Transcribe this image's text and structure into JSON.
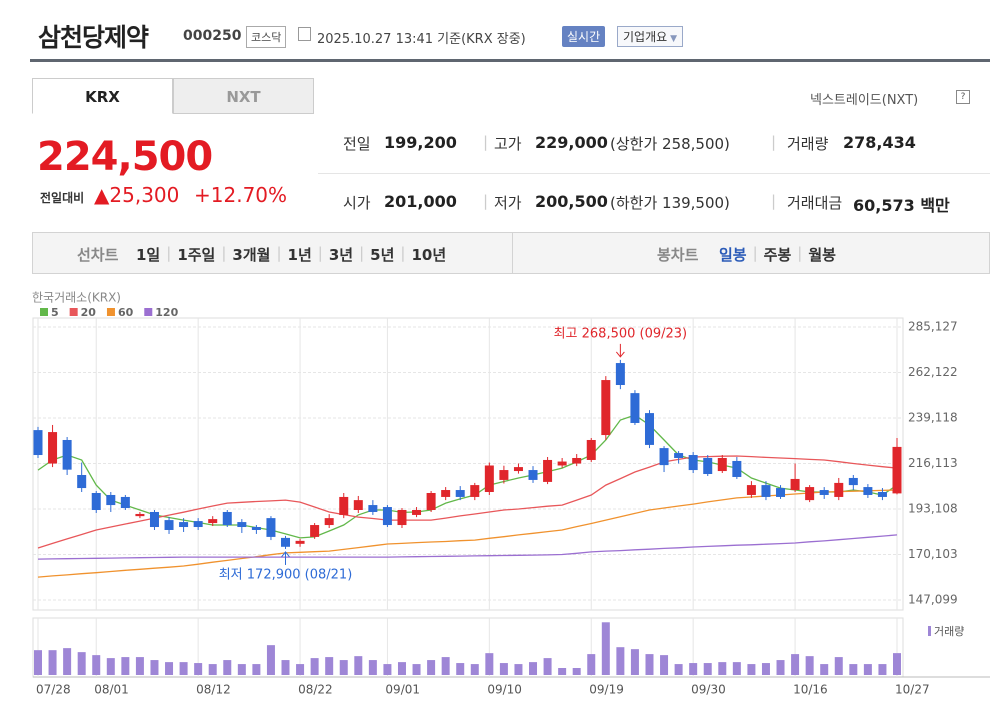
{
  "header": {
    "name": "삼천당제약",
    "code": "000250",
    "market": "코스닥",
    "timestamp": "2025.10.27 13:41 기준(KRX 장중)",
    "realtime": "실시간",
    "company_info": "기업개요"
  },
  "tabs": [
    "KRX",
    "NXT"
  ],
  "nxt_link": "넥스트레이드(NXT)",
  "price": {
    "current": "224,500",
    "change_label": "전일대비",
    "change": "▲25,300",
    "change_rate": "+12.70%"
  },
  "stats": [
    [
      {
        "label": "전일",
        "value": "199,200"
      },
      {
        "label": "고가",
        "value": "229,000",
        "note": "(상한가 258,500)"
      },
      {
        "label": "거래량",
        "value": "278,434"
      }
    ],
    [
      {
        "label": "시가",
        "value": "201,000"
      },
      {
        "label": "저가",
        "value": "200,500",
        "note": "(하한가 139,500)"
      },
      {
        "label": "거래대금",
        "value": "60,573 백만"
      }
    ]
  ],
  "periods": {
    "line_label": "선차트",
    "line": [
      "1일",
      "1주일",
      "3개월",
      "1년",
      "3년",
      "5년",
      "10년"
    ],
    "candle_label": "봉차트",
    "candle": [
      "일봉",
      "주봉",
      "월봉"
    ]
  },
  "chart_data": {
    "type": "candlestick",
    "source": "한국거래소(KRX)",
    "categories": [
      "07/28",
      null,
      null,
      null,
      "08/01",
      null,
      null,
      null,
      null,
      null,
      null,
      "08/12",
      null,
      null,
      null,
      null,
      null,
      null,
      "08/22",
      null,
      null,
      null,
      null,
      null,
      "09/01",
      null,
      null,
      null,
      null,
      null,
      null,
      "09/10",
      null,
      null,
      null,
      null,
      null,
      null,
      "09/19",
      null,
      null,
      null,
      null,
      null,
      null,
      "09/30",
      null,
      null,
      null,
      null,
      null,
      null,
      "10/16",
      null,
      null,
      null,
      null,
      null,
      null,
      "10/27"
    ],
    "open": [
      233000,
      216100,
      228000,
      210300,
      201200,
      200200,
      199200,
      189500,
      191600,
      187500,
      186500,
      187000,
      186000,
      191600,
      186500,
      184000,
      188500,
      178500,
      175500,
      179000,
      185000,
      190100,
      192600,
      195100,
      194100,
      185000,
      190100,
      192600,
      199200,
      202700,
      199200,
      201700,
      207800,
      212300,
      212800,
      206800,
      215100,
      216100,
      217900,
      230500,
      266900,
      251700,
      241600,
      223900,
      221400,
      220400,
      218900,
      212300,
      217400,
      200200,
      205200,
      203700,
      202700,
      197600,
      202700,
      199200,
      208800,
      204200,
      201700,
      201000
    ],
    "high": [
      234600,
      235600,
      229500,
      216600,
      202200,
      201700,
      200200,
      191600,
      192600,
      189100,
      188500,
      188500,
      189500,
      192600,
      188000,
      185000,
      189500,
      179500,
      178000,
      186000,
      190500,
      201200,
      199700,
      197600,
      195100,
      193600,
      194100,
      202200,
      204200,
      204700,
      206300,
      216600,
      215000,
      216100,
      214800,
      219400,
      218900,
      220900,
      229000,
      260300,
      268500,
      253200,
      243100,
      224900,
      222400,
      221900,
      220400,
      220400,
      219400,
      207200,
      207200,
      205200,
      216100,
      205200,
      204200,
      208800,
      210300,
      205700,
      203700,
      229000
    ],
    "low": [
      218900,
      214300,
      210300,
      201700,
      191100,
      191600,
      192600,
      188500,
      182500,
      180500,
      181500,
      182500,
      184500,
      184000,
      181000,
      180500,
      177400,
      172900,
      174000,
      178000,
      183500,
      188500,
      191100,
      190100,
      184000,
      183500,
      189000,
      191600,
      197600,
      197600,
      197600,
      200200,
      206000,
      211000,
      206300,
      205700,
      214000,
      214800,
      216900,
      228000,
      253700,
      235600,
      223900,
      211800,
      216100,
      211300,
      209800,
      211300,
      208300,
      198700,
      197600,
      198200,
      201700,
      196600,
      198200,
      197600,
      202700,
      198700,
      197600,
      200500
    ],
    "close": [
      220400,
      232000,
      213000,
      203700,
      192600,
      195100,
      193600,
      190600,
      184000,
      182500,
      184000,
      184000,
      188000,
      185000,
      184000,
      182500,
      179000,
      174000,
      177000,
      185000,
      188500,
      199200,
      197600,
      191600,
      185000,
      192600,
      192600,
      201200,
      202700,
      199200,
      205200,
      215100,
      212800,
      214300,
      207800,
      217900,
      217100,
      218900,
      228000,
      258300,
      255800,
      236600,
      225500,
      215300,
      218900,
      212800,
      210800,
      218900,
      209300,
      205200,
      199200,
      199200,
      208300,
      204200,
      200200,
      206300,
      205200,
      200200,
      199200,
      224500
    ],
    "up_color": "#e0262b",
    "down_color": "#2e6bd6",
    "ma": [
      {
        "name": "5",
        "color": "#62b84a",
        "values": [
          212800,
          217900,
          220400,
          217900,
          205200,
          197600,
          195100,
          192600,
          190100,
          188800,
          187500,
          186300,
          185000,
          185000,
          185000,
          183700,
          182500,
          180500,
          178500,
          179000,
          182000,
          185000,
          190100,
          192600,
          192600,
          191400,
          191600,
          192600,
          196100,
          198200,
          200200,
          205200,
          207000,
          208800,
          210300,
          212000,
          213800,
          216900,
          220400,
          228000,
          238100,
          240600,
          235600,
          228000,
          220400,
          217900,
          216900,
          215300,
          213800,
          208800,
          206200,
          203700,
          202700,
          201700,
          201700,
          201700,
          202700,
          201700,
          200200,
          205200
        ]
      },
      {
        "name": "20",
        "color": "#e8575a",
        "values": [
          173400,
          175700,
          178000,
          180200,
          182500,
          184000,
          185500,
          187000,
          188500,
          190000,
          191500,
          193100,
          194600,
          196100,
          196500,
          196900,
          197200,
          197600,
          196600,
          194100,
          191600,
          190300,
          189000,
          188300,
          187500,
          187500,
          187500,
          187500,
          188500,
          189600,
          190600,
          191600,
          192600,
          193100,
          193800,
          194500,
          195100,
          197600,
          200200,
          205200,
          208500,
          211800,
          214300,
          216900,
          218200,
          219400,
          219600,
          219800,
          219900,
          219600,
          219200,
          218900,
          218600,
          218200,
          217900,
          217000,
          216100,
          215300,
          214500,
          213800
        ]
      },
      {
        "name": "60",
        "color": "#f0922e",
        "values": [
          158700,
          159300,
          159800,
          160400,
          160900,
          161500,
          162100,
          162600,
          163200,
          163700,
          164300,
          165200,
          166200,
          167100,
          168100,
          169000,
          170000,
          170900,
          171200,
          171500,
          171800,
          172700,
          173600,
          174500,
          175400,
          175700,
          176100,
          176400,
          176700,
          177100,
          177400,
          178300,
          179100,
          180000,
          180800,
          181700,
          182500,
          184200,
          185800,
          187500,
          189200,
          190900,
          192600,
          193600,
          194600,
          195600,
          196700,
          197700,
          198700,
          199200,
          199700,
          200200,
          200700,
          201200,
          201700,
          201900,
          202100,
          202300,
          202500,
          202700
        ]
      },
      {
        "name": "120",
        "color": "#9b6fd1",
        "values": [
          167800,
          167900,
          168000,
          168100,
          168200,
          168300,
          168400,
          168500,
          168600,
          168700,
          168800,
          168800,
          168800,
          168800,
          168800,
          168800,
          168800,
          168800,
          168800,
          168800,
          168800,
          168800,
          168800,
          168800,
          168800,
          168900,
          169000,
          169100,
          169200,
          169300,
          169400,
          169500,
          169600,
          169700,
          169800,
          169900,
          170100,
          170700,
          171400,
          171800,
          172100,
          172500,
          172800,
          173200,
          173500,
          173900,
          174200,
          174500,
          174800,
          175000,
          175300,
          175600,
          175900,
          176500,
          177000,
          177600,
          178200,
          178800,
          179400,
          180000
        ]
      }
    ],
    "ylim": [
      142043,
      289677
    ],
    "yticks": [
      {
        "value": 285127,
        "label": "285,127"
      },
      {
        "value": 262122,
        "label": "262,122"
      },
      {
        "value": 239118,
        "label": "239,118"
      },
      {
        "value": 216113,
        "label": "216,113"
      },
      {
        "value": 193108,
        "label": "193,108"
      },
      {
        "value": 170103,
        "label": "170,103"
      },
      {
        "value": 147099,
        "label": "147,099"
      }
    ],
    "grid": true,
    "volume": {
      "name": "거래량",
      "color": "#9e86d6",
      "ylim": [
        0,
        700000
      ],
      "values": [
        316000,
        316000,
        342000,
        291000,
        253000,
        215000,
        228000,
        228000,
        190000,
        164000,
        164000,
        152000,
        139000,
        190000,
        139000,
        139000,
        380000,
        190000,
        139000,
        215000,
        228000,
        190000,
        240000,
        190000,
        139000,
        164000,
        139000,
        190000,
        228000,
        152000,
        139000,
        278000,
        152000,
        139000,
        164000,
        215000,
        89000,
        89000,
        266000,
        671000,
        354000,
        329000,
        266000,
        253000,
        139000,
        152000,
        152000,
        164000,
        164000,
        139000,
        152000,
        190000,
        266000,
        240000,
        139000,
        228000,
        139000,
        139000,
        139000,
        278434
      ]
    },
    "annotations": [
      {
        "label": "최고 268,500 (09/23)",
        "value": 268500,
        "color": "#e0262b"
      },
      {
        "label": "최저 172,900 (08/21)",
        "value": 172900,
        "color": "#2e6bd6"
      }
    ]
  }
}
